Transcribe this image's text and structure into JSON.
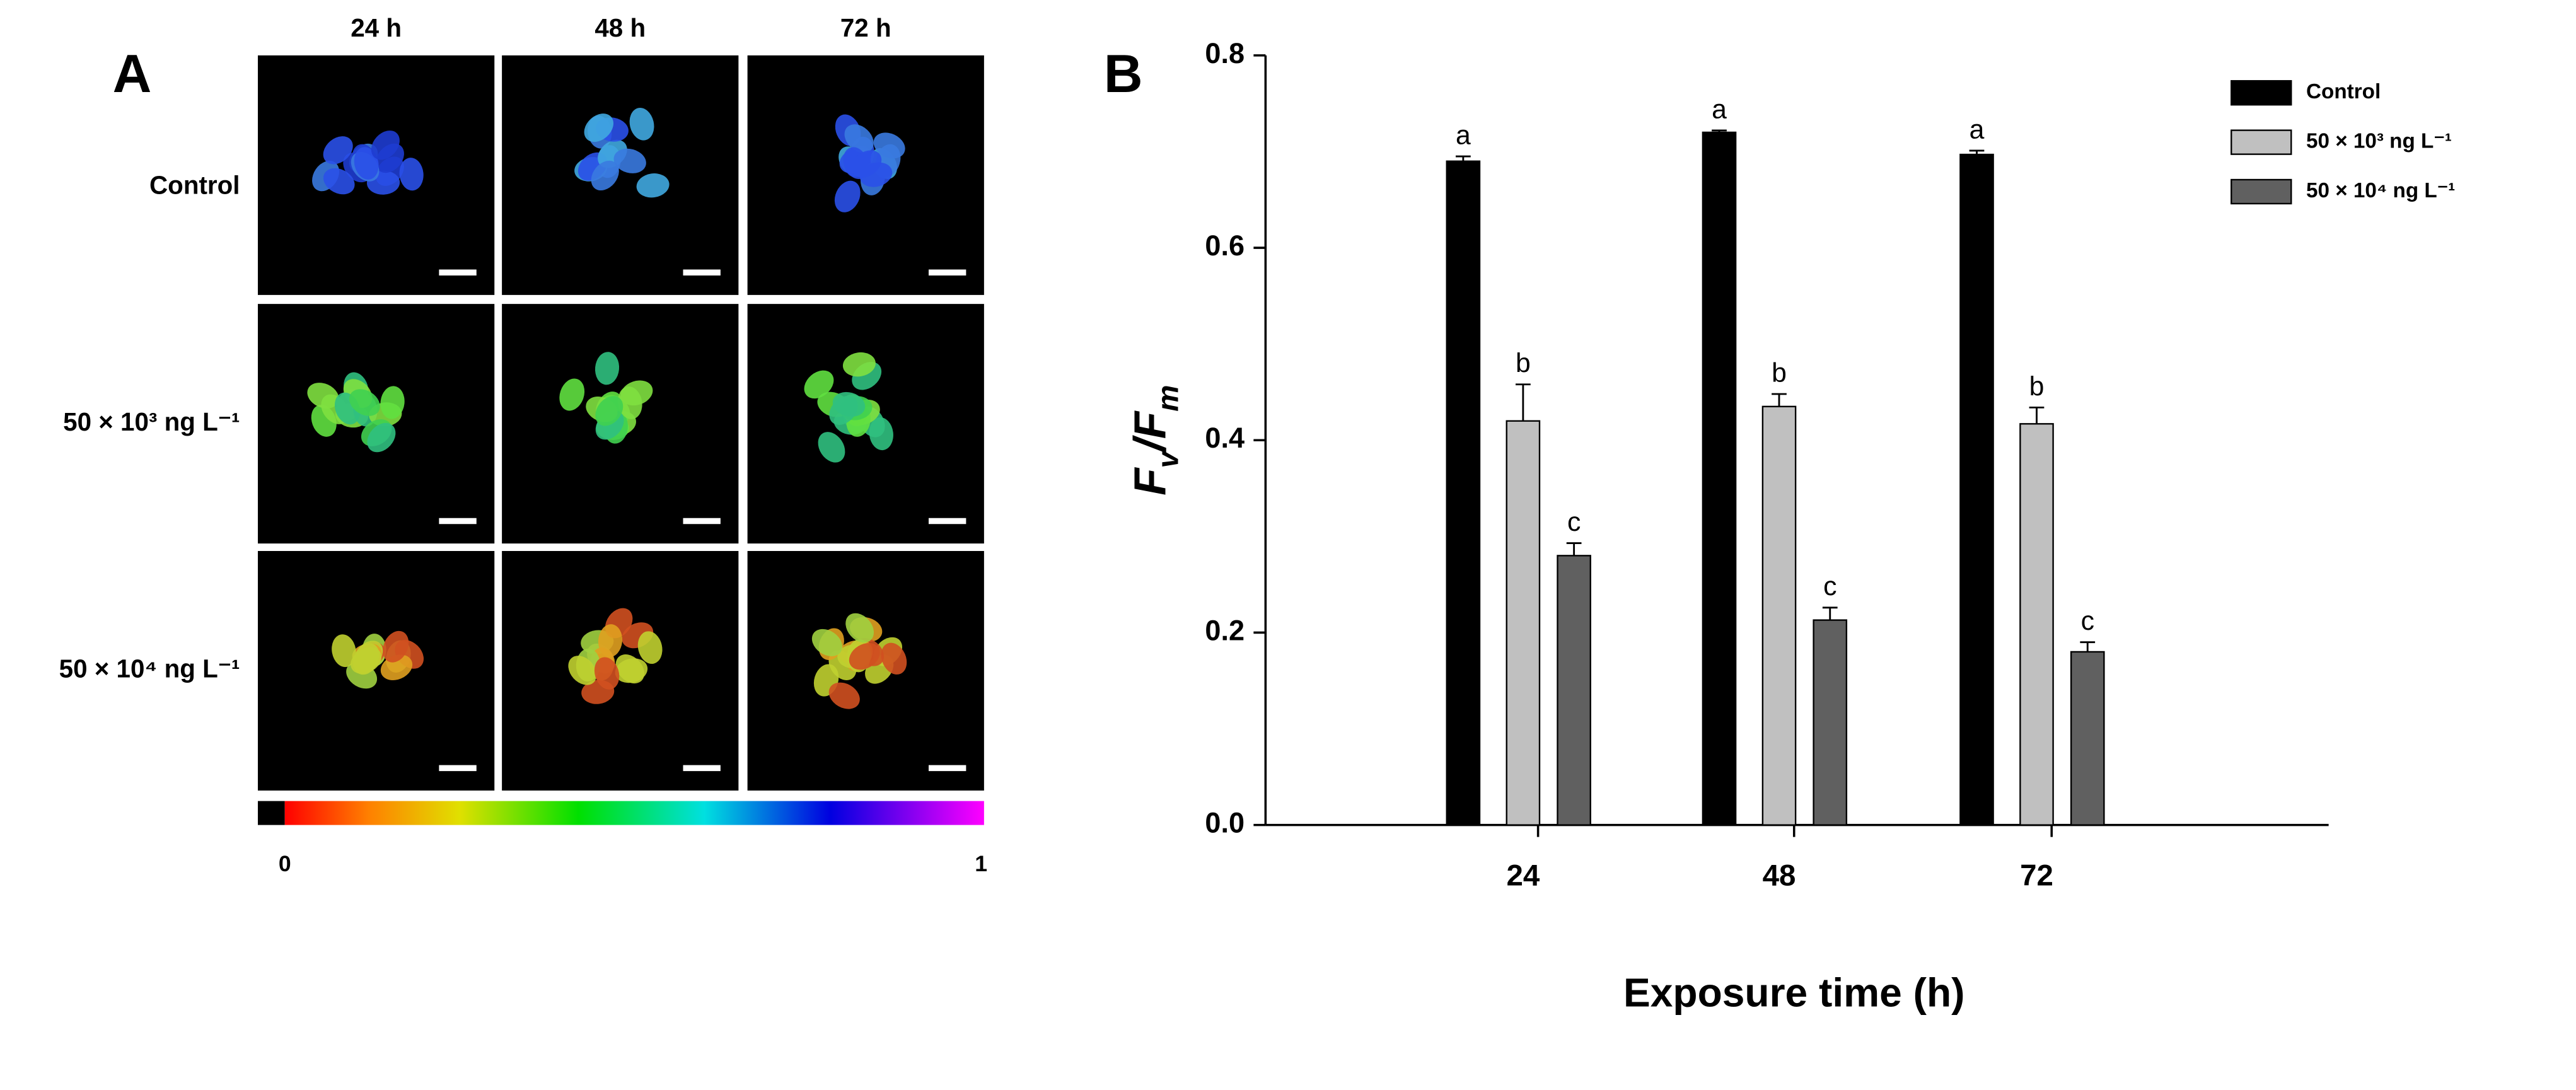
{
  "panel_a": {
    "label": "A",
    "columns": [
      "24 h",
      "48 h",
      "72 h"
    ],
    "rows": [
      "Control",
      "50 × 10³ ng L⁻¹",
      "50 × 10⁴ ng L⁻¹"
    ],
    "colorbar_ticks": [
      0,
      1
    ]
  },
  "chart_data": {
    "type": "bar",
    "panel_label": "B",
    "ylabel": "Fv/Fm",
    "xlabel": "Exposure time (h)",
    "categories": [
      "24",
      "48",
      "72"
    ],
    "series": [
      {
        "name": "Control",
        "color": "#000000",
        "values": [
          0.69,
          0.72,
          0.697
        ],
        "errors": [
          0.005,
          0.002,
          0.004
        ],
        "letters": [
          "a",
          "a",
          "a"
        ]
      },
      {
        "name": "50 × 10³ ng L⁻¹",
        "color": "#c0c0c0",
        "values": [
          0.42,
          0.435,
          0.417
        ],
        "errors": [
          0.038,
          0.013,
          0.017
        ],
        "letters": [
          "b",
          "b",
          "b"
        ]
      },
      {
        "name": "50 × 10⁴ ng L⁻¹",
        "color": "#606060",
        "values": [
          0.28,
          0.213,
          0.18
        ],
        "errors": [
          0.013,
          0.013,
          0.01
        ],
        "letters": [
          "c",
          "c",
          "c"
        ]
      }
    ],
    "ylim": [
      0,
      0.8
    ],
    "yticks": [
      {
        "value": 0,
        "label": "0.0"
      },
      0.2,
      0.4,
      0.6,
      0.8
    ],
    "grid": false,
    "legend": "upper-right"
  }
}
